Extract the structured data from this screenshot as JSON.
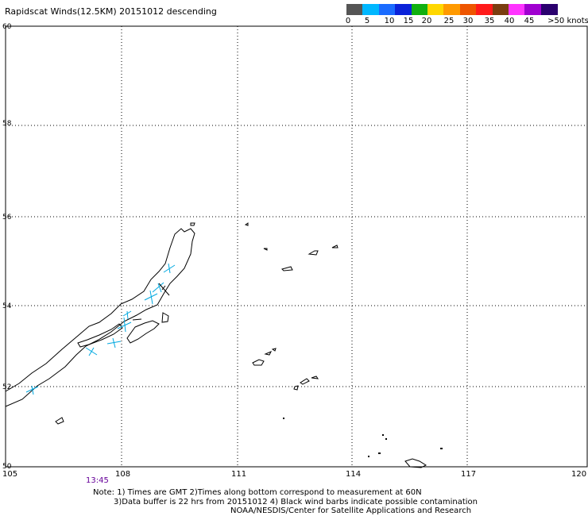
{
  "title": "Rapidscat Winds(12.5KM) 20151012 descending",
  "colorbar": {
    "colors": [
      "#555555",
      "#00b7ff",
      "#1a6bff",
      "#0a22d9",
      "#10b010",
      "#ffd700",
      "#ff9a00",
      "#ee5500",
      "#ff1a1a",
      "#7a3d10",
      "#ff33ff",
      "#a000d0",
      "#2a006e"
    ],
    "labels": [
      "0",
      "5",
      "10",
      "15",
      "20",
      "25",
      "30",
      "35",
      "40",
      "45",
      ">50 knots"
    ]
  },
  "axes": {
    "lon_ticks": [
      "105",
      "108",
      "111",
      "114",
      "117",
      "120"
    ],
    "lat_ticks": [
      "60",
      "58",
      "56",
      "54",
      "52",
      "50"
    ]
  },
  "time_label": "13:45",
  "notes": [
    "Note: 1) Times are GMT 2)Times along bottom correspond to measurement at 60N",
    "3)Data buffer is 22 hrs from 20151012 4) Black wind barbs indicate possible contamination",
    "NOAA/NESDIS/Center for Satellite Applications and Research"
  ],
  "colors": {
    "coast": "#000000",
    "grid": "#000000",
    "wind_barb": "#00a8e0",
    "time": "#660099"
  }
}
